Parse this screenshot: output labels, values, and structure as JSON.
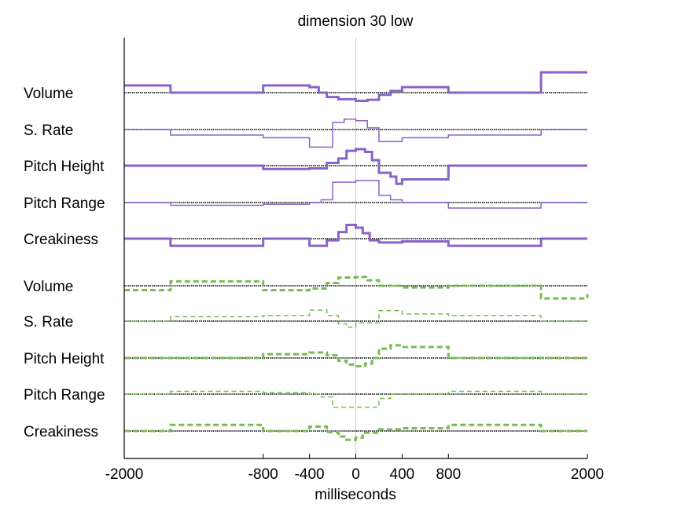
{
  "chart_data": {
    "type": "line",
    "title": "dimension 30 low",
    "xlabel": "milliseconds",
    "ylabel": "",
    "xlim": [
      -2000,
      2000
    ],
    "xticks": [
      "-2000",
      "-800",
      "-400",
      "0",
      "400",
      "800",
      "2000"
    ],
    "grid": false,
    "colors": {
      "upper": "#8a63c8",
      "lower": "#77bb55",
      "zero_line": "#cccccc",
      "baseline": "#000000"
    },
    "series": [
      {
        "label": "Volume",
        "group": "upper",
        "style": "solid",
        "width": "thick",
        "steps": [
          [
            -2000,
            1.3
          ],
          [
            -1600,
            0
          ],
          [
            -800,
            1.3
          ],
          [
            -400,
            1.0
          ],
          [
            -320,
            0
          ],
          [
            -250,
            -0.8
          ],
          [
            -150,
            -1.2
          ],
          [
            0,
            -1.5
          ],
          [
            100,
            -1.3
          ],
          [
            200,
            -0.4
          ],
          [
            300,
            0.3
          ],
          [
            400,
            1.0
          ],
          [
            800,
            0
          ],
          [
            1600,
            3.7
          ],
          [
            2000,
            3.7
          ]
        ]
      },
      {
        "label": "S. Rate",
        "group": "upper",
        "style": "solid",
        "width": "thin",
        "steps": [
          [
            -2000,
            0
          ],
          [
            -1600,
            -1.0
          ],
          [
            -800,
            -1.5
          ],
          [
            -400,
            -3.2
          ],
          [
            -200,
            1.3
          ],
          [
            -100,
            1.9
          ],
          [
            0,
            1.6
          ],
          [
            100,
            0.3
          ],
          [
            200,
            -2.2
          ],
          [
            400,
            -1.5
          ],
          [
            800,
            -1.0
          ],
          [
            1600,
            0
          ],
          [
            2000,
            0
          ]
        ]
      },
      {
        "label": "Pitch Height",
        "group": "upper",
        "style": "solid",
        "width": "thick",
        "steps": [
          [
            -2000,
            0
          ],
          [
            -800,
            -0.6
          ],
          [
            -400,
            -0.5
          ],
          [
            -250,
            0.5
          ],
          [
            -150,
            1.3
          ],
          [
            -80,
            2.7
          ],
          [
            0,
            3.0
          ],
          [
            80,
            2.5
          ],
          [
            140,
            1.0
          ],
          [
            200,
            -1.3
          ],
          [
            300,
            -2.0
          ],
          [
            350,
            -3.3
          ],
          [
            400,
            -2.5
          ],
          [
            800,
            0
          ],
          [
            2000,
            0
          ]
        ]
      },
      {
        "label": "Pitch Range",
        "group": "upper",
        "style": "solid",
        "width": "thin",
        "steps": [
          [
            -2000,
            0
          ],
          [
            -1600,
            -0.5
          ],
          [
            -800,
            -0.3
          ],
          [
            -400,
            0
          ],
          [
            -300,
            0.5
          ],
          [
            -200,
            3.7
          ],
          [
            0,
            4.0
          ],
          [
            200,
            1.3
          ],
          [
            300,
            0.5
          ],
          [
            400,
            0
          ],
          [
            800,
            -1.0
          ],
          [
            1600,
            0
          ],
          [
            2000,
            0
          ]
        ]
      },
      {
        "label": "Creakiness",
        "group": "upper",
        "style": "solid",
        "width": "thick",
        "steps": [
          [
            -2000,
            0
          ],
          [
            -1600,
            -1.3
          ],
          [
            -800,
            0
          ],
          [
            -400,
            -1.3
          ],
          [
            -250,
            -0.3
          ],
          [
            -150,
            1.2
          ],
          [
            -80,
            2.5
          ],
          [
            0,
            2.0
          ],
          [
            60,
            1.0
          ],
          [
            120,
            -0.3
          ],
          [
            200,
            -0.7
          ],
          [
            400,
            -0.5
          ],
          [
            800,
            -1.3
          ],
          [
            1600,
            0
          ],
          [
            2000,
            0
          ]
        ]
      },
      {
        "label": "Volume",
        "group": "lower",
        "style": "dashed",
        "width": "thick",
        "steps": [
          [
            -2000,
            -0.8
          ],
          [
            -1600,
            0.8
          ],
          [
            -800,
            -0.8
          ],
          [
            -400,
            -0.5
          ],
          [
            -250,
            0.5
          ],
          [
            -150,
            1.5
          ],
          [
            0,
            1.6
          ],
          [
            100,
            1.0
          ],
          [
            200,
            0
          ],
          [
            400,
            -0.3
          ],
          [
            800,
            0
          ],
          [
            1600,
            -2.3
          ],
          [
            2000,
            -1.5
          ]
        ]
      },
      {
        "label": "S. Rate",
        "group": "lower",
        "style": "dashed",
        "width": "thin",
        "steps": [
          [
            -2000,
            0
          ],
          [
            -1600,
            0.8
          ],
          [
            -800,
            1.0
          ],
          [
            -400,
            2.0
          ],
          [
            -250,
            1.0
          ],
          [
            -150,
            -0.5
          ],
          [
            -80,
            -1.1
          ],
          [
            0,
            -0.3
          ],
          [
            200,
            1.9
          ],
          [
            400,
            1.3
          ],
          [
            800,
            1.0
          ],
          [
            1600,
            0
          ],
          [
            2000,
            0
          ]
        ]
      },
      {
        "label": "Pitch Height",
        "group": "lower",
        "style": "dashed",
        "width": "thick",
        "steps": [
          [
            -2000,
            0
          ],
          [
            -800,
            0.7
          ],
          [
            -400,
            1.0
          ],
          [
            -250,
            0.5
          ],
          [
            -150,
            -0.5
          ],
          [
            -80,
            -1.2
          ],
          [
            0,
            -1.5
          ],
          [
            80,
            -1.0
          ],
          [
            140,
            0
          ],
          [
            200,
            1.7
          ],
          [
            300,
            2.3
          ],
          [
            400,
            2.0
          ],
          [
            800,
            0
          ],
          [
            2000,
            0
          ]
        ]
      },
      {
        "label": "Pitch Range",
        "group": "lower",
        "style": "dashed",
        "width": "thin",
        "steps": [
          [
            -2000,
            0
          ],
          [
            -1600,
            0.5
          ],
          [
            -800,
            0.3
          ],
          [
            -400,
            0
          ],
          [
            -300,
            -0.5
          ],
          [
            -200,
            -2.4
          ],
          [
            200,
            -0.8
          ],
          [
            300,
            0
          ],
          [
            800,
            0.5
          ],
          [
            1600,
            0
          ],
          [
            2000,
            0
          ]
        ]
      },
      {
        "label": "Creakiness",
        "group": "lower",
        "style": "dashed",
        "width": "thick",
        "steps": [
          [
            -2000,
            0
          ],
          [
            -1600,
            1.1
          ],
          [
            -800,
            0
          ],
          [
            -400,
            0.8
          ],
          [
            -250,
            -0.2
          ],
          [
            -150,
            -1.0
          ],
          [
            -80,
            -1.6
          ],
          [
            0,
            -1.2
          ],
          [
            60,
            -0.3
          ],
          [
            200,
            0.3
          ],
          [
            400,
            0.5
          ],
          [
            800,
            1.1
          ],
          [
            1600,
            0
          ],
          [
            2000,
            0
          ]
        ]
      }
    ]
  }
}
